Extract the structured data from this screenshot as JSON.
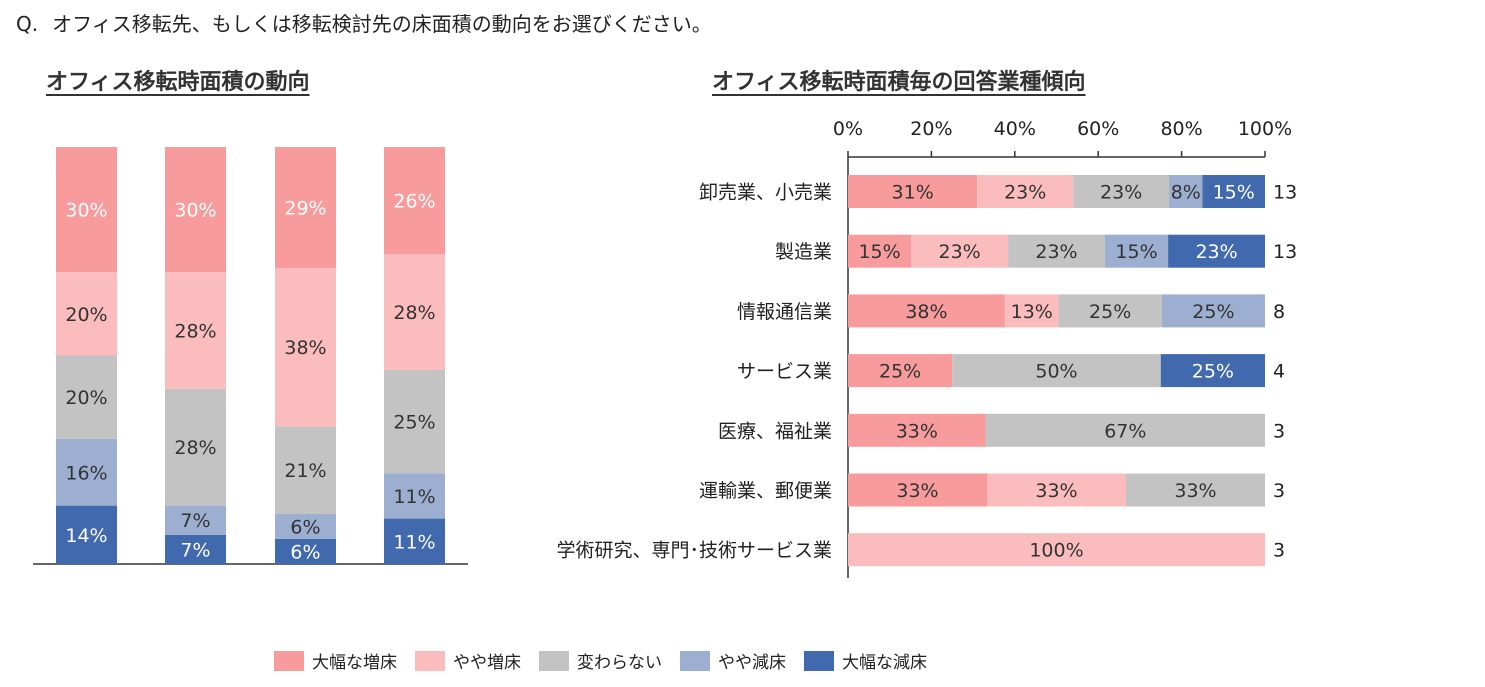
{
  "question": {
    "prefix": "Q.",
    "text": "オフィス移転先、もしくは移転検討先の床面積の動向をお選びください。"
  },
  "colors": {
    "大幅な増床": "#f79b9c",
    "やや増床": "#fbbcbd",
    "変わらない": "#c3c3c3",
    "やや減床": "#9dafd1",
    "大幅な減床": "#4169ad"
  },
  "legend": [
    {
      "label": "大幅な増床",
      "color": "#f79b9c"
    },
    {
      "label": "やや増床",
      "color": "#fbbcbd"
    },
    {
      "label": "変わらない",
      "color": "#c3c3c3"
    },
    {
      "label": "やや減床",
      "color": "#9dafd1"
    },
    {
      "label": "大幅な減床",
      "color": "#4169ad"
    }
  ],
  "chart_data": [
    {
      "type": "bar",
      "stacked": true,
      "orientation": "vertical",
      "title": "オフィス移転時面積の動向",
      "categories": [
        "",
        "",
        "",
        ""
      ],
      "series": [
        {
          "name": "大幅な減床",
          "values": [
            14,
            7,
            6,
            11
          ],
          "labels": [
            "14%",
            "7%",
            "6%",
            "11%"
          ]
        },
        {
          "name": "やや減床",
          "values": [
            16,
            7,
            6,
            11
          ],
          "labels": [
            "16%",
            "7%",
            "6%",
            "11%"
          ]
        },
        {
          "name": "変わらない",
          "values": [
            20,
            28,
            21,
            25
          ],
          "labels": [
            "20%",
            "28%",
            "21%",
            "25%"
          ]
        },
        {
          "name": "やや増床",
          "values": [
            20,
            28,
            38,
            28
          ],
          "labels": [
            "20%",
            "28%",
            "38%",
            "28%"
          ]
        },
        {
          "name": "大幅な増床",
          "values": [
            30,
            30,
            29,
            26
          ],
          "labels": [
            "30%",
            "30%",
            "29%",
            "26%"
          ]
        }
      ],
      "ylim": [
        0,
        100
      ]
    },
    {
      "type": "bar",
      "stacked": true,
      "orientation": "horizontal",
      "title": "オフィス移転時面積毎の回答業種傾向",
      "xticks": [
        "0%",
        "20%",
        "40%",
        "60%",
        "80%",
        "100%"
      ],
      "xlim": [
        0,
        100
      ],
      "rows": [
        {
          "category": "卸売業、小売業",
          "count": "13",
          "segments": [
            {
              "name": "大幅な増床",
              "value": 31,
              "label": "31%"
            },
            {
              "name": "やや増床",
              "value": 23,
              "label": "23%"
            },
            {
              "name": "変わらない",
              "value": 23,
              "label": "23%"
            },
            {
              "name": "やや減床",
              "value": 8,
              "label": "8%"
            },
            {
              "name": "大幅な減床",
              "value": 15,
              "label": "15%"
            }
          ]
        },
        {
          "category": "製造業",
          "count": "13",
          "segments": [
            {
              "name": "大幅な増床",
              "value": 15,
              "label": "15%"
            },
            {
              "name": "やや増床",
              "value": 23,
              "label": "23%"
            },
            {
              "name": "変わらない",
              "value": 23,
              "label": "23%"
            },
            {
              "name": "やや減床",
              "value": 15,
              "label": "15%"
            },
            {
              "name": "大幅な減床",
              "value": 23,
              "label": "23%"
            }
          ]
        },
        {
          "category": "情報通信業",
          "count": "8",
          "segments": [
            {
              "name": "大幅な増床",
              "value": 38,
              "label": "38%"
            },
            {
              "name": "やや増床",
              "value": 13,
              "label": "13%"
            },
            {
              "name": "変わらない",
              "value": 25,
              "label": "25%"
            },
            {
              "name": "やや減床",
              "value": 25,
              "label": "25%"
            }
          ]
        },
        {
          "category": "サービス業",
          "count": "4",
          "segments": [
            {
              "name": "大幅な増床",
              "value": 25,
              "label": "25%"
            },
            {
              "name": "変わらない",
              "value": 50,
              "label": "50%"
            },
            {
              "name": "大幅な減床",
              "value": 25,
              "label": "25%"
            }
          ]
        },
        {
          "category": "医療、福祉業",
          "count": "3",
          "segments": [
            {
              "name": "大幅な増床",
              "value": 33,
              "label": "33%"
            },
            {
              "name": "変わらない",
              "value": 67,
              "label": "67%"
            }
          ]
        },
        {
          "category": "運輸業、郵便業",
          "count": "3",
          "segments": [
            {
              "name": "大幅な増床",
              "value": 33,
              "label": "33%"
            },
            {
              "name": "やや増床",
              "value": 33,
              "label": "33%"
            },
            {
              "name": "変わらない",
              "value": 33,
              "label": "33%"
            }
          ]
        },
        {
          "category": "学術研究、専門･技術サービス業",
          "count": "3",
          "segments": [
            {
              "name": "やや増床",
              "value": 100,
              "label": "100%"
            }
          ]
        }
      ]
    }
  ]
}
